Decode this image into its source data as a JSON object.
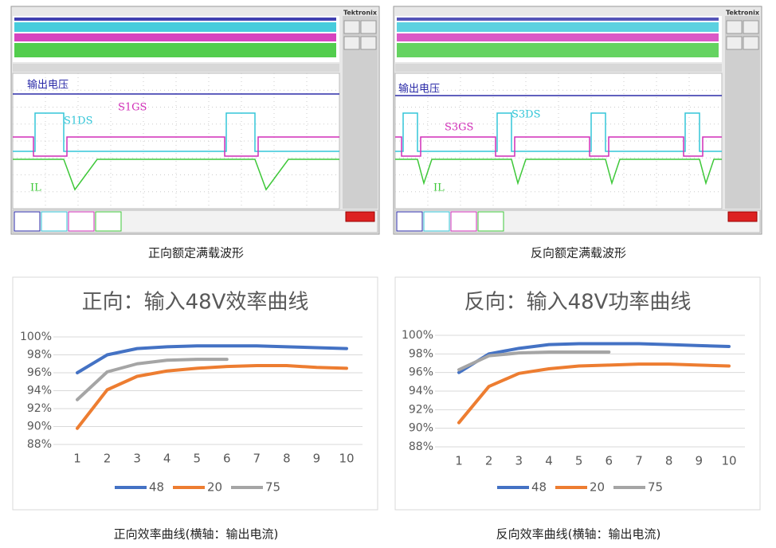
{
  "scopes": [
    {
      "brand": "Tektronix",
      "signals": [
        "输出电压",
        "S1DS",
        "S1GS",
        "IL"
      ],
      "caption": "正向额定满载波形"
    },
    {
      "brand": "Tektronix",
      "signals": [
        "输出电压",
        "S3DS",
        "S3GS",
        "IL"
      ],
      "caption": "反向额定满载波形"
    }
  ],
  "chart_data": [
    {
      "type": "line",
      "title": "正向：输入48V效率曲线",
      "caption": "正向效率曲线(横轴：输出电流)",
      "categories": [
        1,
        2,
        3,
        4,
        5,
        6,
        7,
        8,
        9,
        10
      ],
      "series": [
        {
          "name": "48",
          "color": "#4472c4",
          "values": [
            96,
            98,
            98.7,
            98.9,
            99,
            99,
            99,
            98.9,
            98.8,
            98.7
          ]
        },
        {
          "name": "20",
          "color": "#ed7d31",
          "values": [
            89.8,
            94.1,
            95.6,
            96.2,
            96.5,
            96.7,
            96.8,
            96.8,
            96.6,
            96.5
          ]
        },
        {
          "name": "75",
          "color": "#a5a5a5",
          "values": [
            93,
            96.1,
            97,
            97.4,
            97.5,
            97.5,
            null,
            null,
            null,
            null
          ]
        }
      ],
      "ylim": [
        88,
        100
      ],
      "yticks": [
        {
          "value": 88,
          "label": "88%"
        },
        {
          "value": 90,
          "label": "90%"
        },
        {
          "value": 92,
          "label": "92%"
        },
        {
          "value": 94,
          "label": "94%"
        },
        {
          "value": 96,
          "label": "96%"
        },
        {
          "value": 98,
          "label": "98%"
        },
        {
          "value": 100,
          "label": "100%"
        }
      ],
      "legend": "bottom"
    },
    {
      "type": "line",
      "title": "反向：输入48V功率曲线",
      "caption": "反向效率曲线(横轴：输出电流)",
      "categories": [
        1,
        2,
        3,
        4,
        5,
        6,
        7,
        8,
        9,
        10
      ],
      "series": [
        {
          "name": "48",
          "color": "#4472c4",
          "values": [
            96,
            98,
            98.6,
            99,
            99.1,
            99.1,
            99.1,
            99,
            98.9,
            98.8
          ]
        },
        {
          "name": "20",
          "color": "#ed7d31",
          "values": [
            90.6,
            94.5,
            95.9,
            96.4,
            96.7,
            96.8,
            96.9,
            96.9,
            96.8,
            96.7
          ]
        },
        {
          "name": "75",
          "color": "#a5a5a5",
          "values": [
            96.3,
            97.8,
            98.1,
            98.2,
            98.2,
            98.2,
            null,
            null,
            null,
            null
          ]
        }
      ],
      "ylim": [
        88,
        100
      ],
      "yticks": [
        {
          "value": 88,
          "label": "88%"
        },
        {
          "value": 90,
          "label": "90%"
        },
        {
          "value": 92,
          "label": "92%"
        },
        {
          "value": 94,
          "label": "94%"
        },
        {
          "value": 96,
          "label": "96%"
        },
        {
          "value": 98,
          "label": "98%"
        },
        {
          "value": 100,
          "label": "100%"
        }
      ],
      "legend": "bottom"
    }
  ]
}
